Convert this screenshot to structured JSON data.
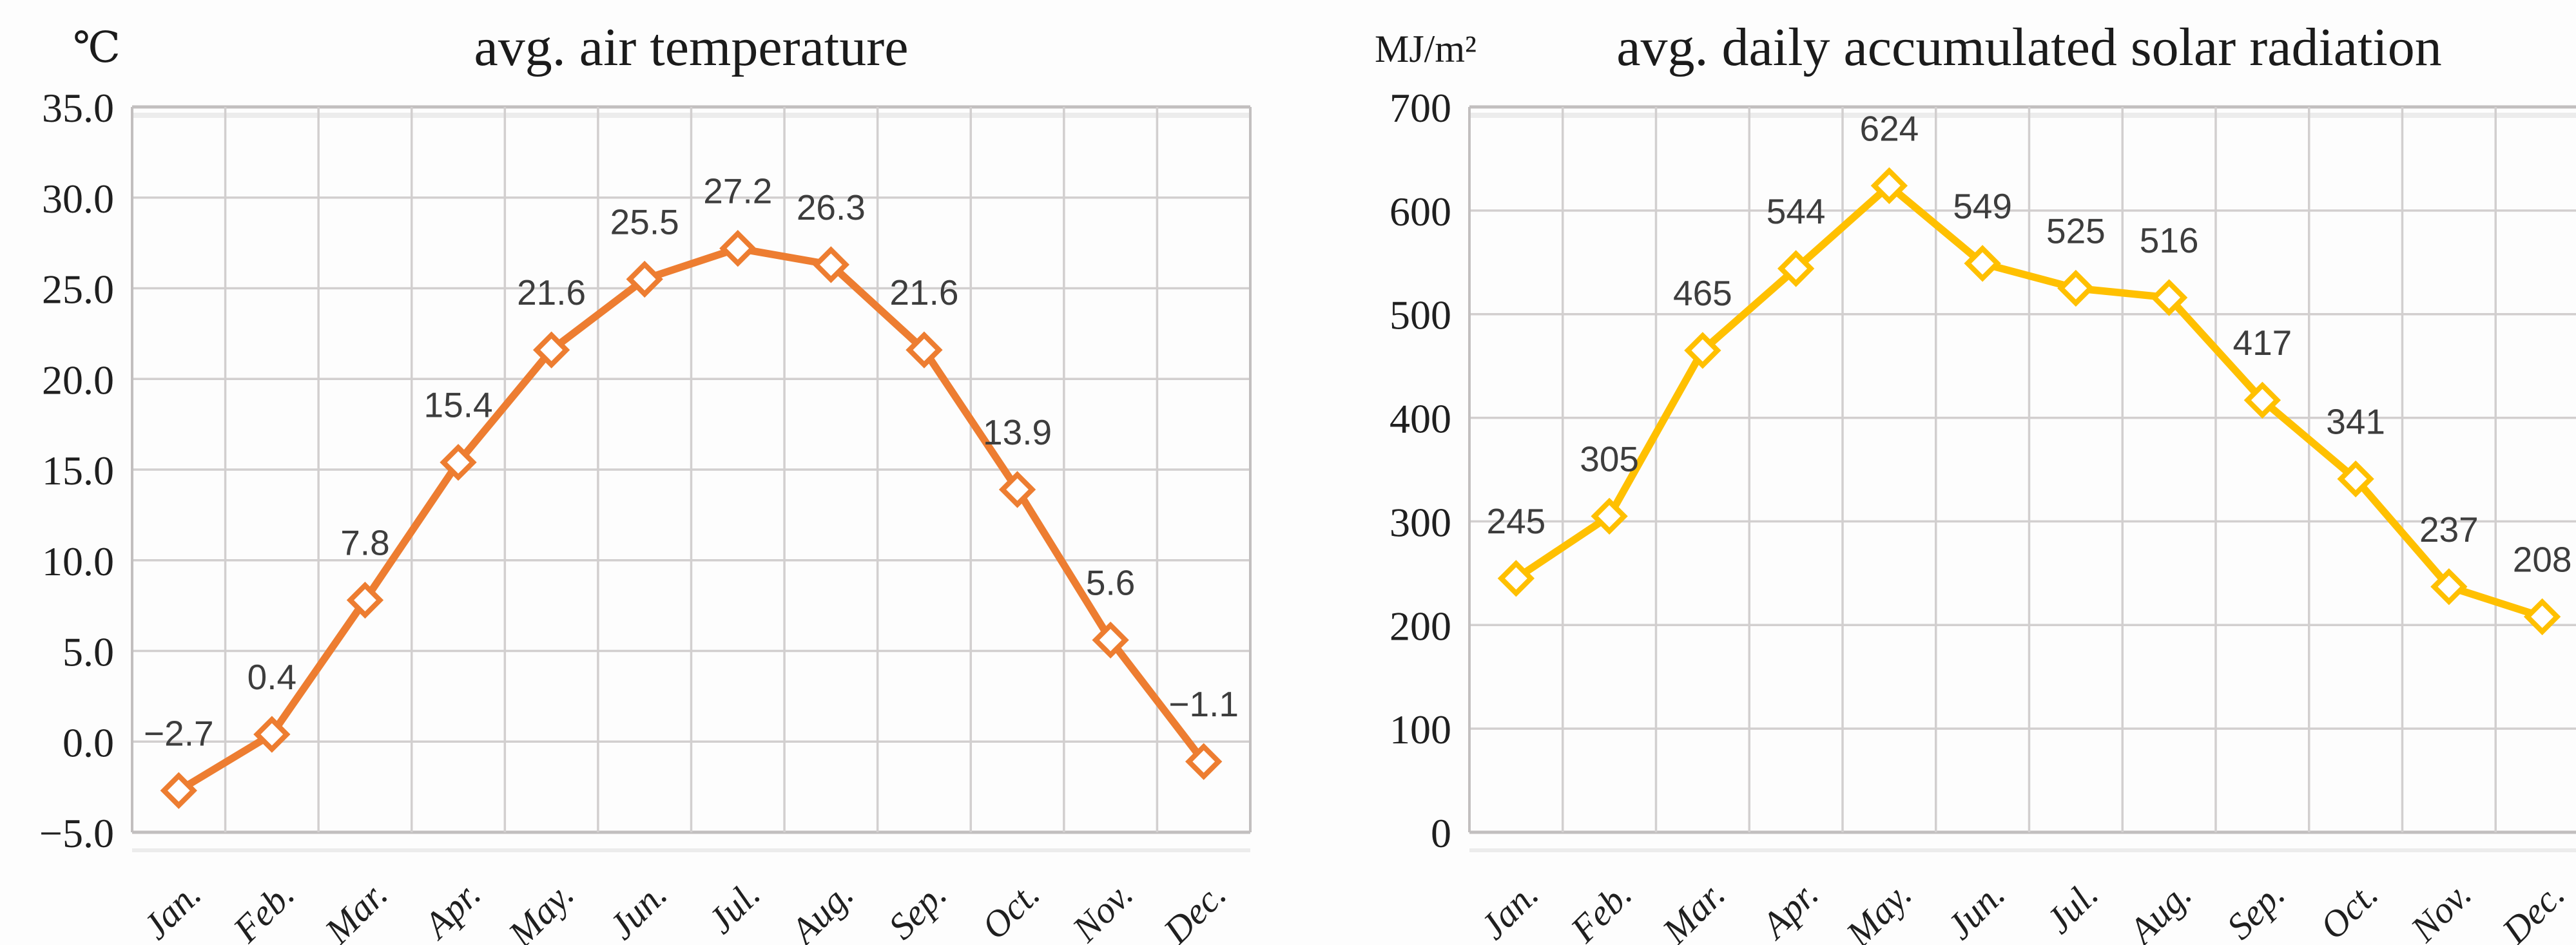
{
  "figure": {
    "background": "#fdfdfd",
    "kind": "two monthly line charts side by side"
  },
  "colors": {
    "temperature_line": "#ED7D31",
    "radiation_line": "#FFC000",
    "grid": "#d2cfcf",
    "plot_border": "#c2bfbf",
    "shadow_line": "#ececec",
    "tick_text": "#1f1f1f",
    "data_label_text": "#3d3d3d",
    "title_text": "#1b1b1b",
    "marker_fill": "#ffffff"
  },
  "chart_data": [
    {
      "type": "line",
      "title": "avg. air temperature",
      "unit_label": "℃",
      "categories": [
        "Jan.",
        "Feb.",
        "Mar.",
        "Apr.",
        "May.",
        "Jun.",
        "Jul.",
        "Aug.",
        "Sep.",
        "Oct.",
        "Nov.",
        "Dec."
      ],
      "series": [
        {
          "name": "avg. air temperature",
          "values": [
            -2.7,
            0.4,
            7.8,
            15.4,
            21.6,
            25.5,
            27.2,
            26.3,
            21.6,
            13.9,
            5.6,
            -1.1
          ]
        }
      ],
      "data_labels": [
        "−2.7",
        "0.4",
        "7.8",
        "15.4",
        "21.6",
        "25.5",
        "27.2",
        "26.3",
        "21.6",
        "13.9",
        "5.6",
        "−1.1"
      ],
      "ylim": [
        -5,
        35
      ],
      "ytick_step": 5,
      "ytick_labels": [
        "35.0",
        "30.0",
        "25.0",
        "20.0",
        "15.0",
        "10.0",
        "5.0",
        "0.0",
        "−5.0"
      ],
      "grid": true,
      "legend": "none",
      "line_color": "#ED7D31",
      "marker": "hollow-diamond"
    },
    {
      "type": "line",
      "title": "avg. daily accumulated solar radiation",
      "unit_label": "MJ/m²",
      "categories": [
        "Jan.",
        "Feb.",
        "Mar.",
        "Apr.",
        "May.",
        "Jun.",
        "Jul.",
        "Aug.",
        "Sep.",
        "Oct.",
        "Nov.",
        "Dec."
      ],
      "series": [
        {
          "name": "avg. daily accumulated solar radiation",
          "values": [
            245,
            305,
            465,
            544,
            624,
            549,
            525,
            516,
            417,
            341,
            237,
            208
          ]
        }
      ],
      "data_labels": [
        "245",
        "305",
        "465",
        "544",
        "624",
        "549",
        "525",
        "516",
        "417",
        "341",
        "237",
        "208"
      ],
      "ylim": [
        0,
        700
      ],
      "ytick_step": 100,
      "ytick_labels": [
        "700",
        "600",
        "500",
        "400",
        "300",
        "200",
        "100",
        "0"
      ],
      "grid": true,
      "legend": "none",
      "line_color": "#FFC000",
      "marker": "hollow-diamond"
    }
  ]
}
